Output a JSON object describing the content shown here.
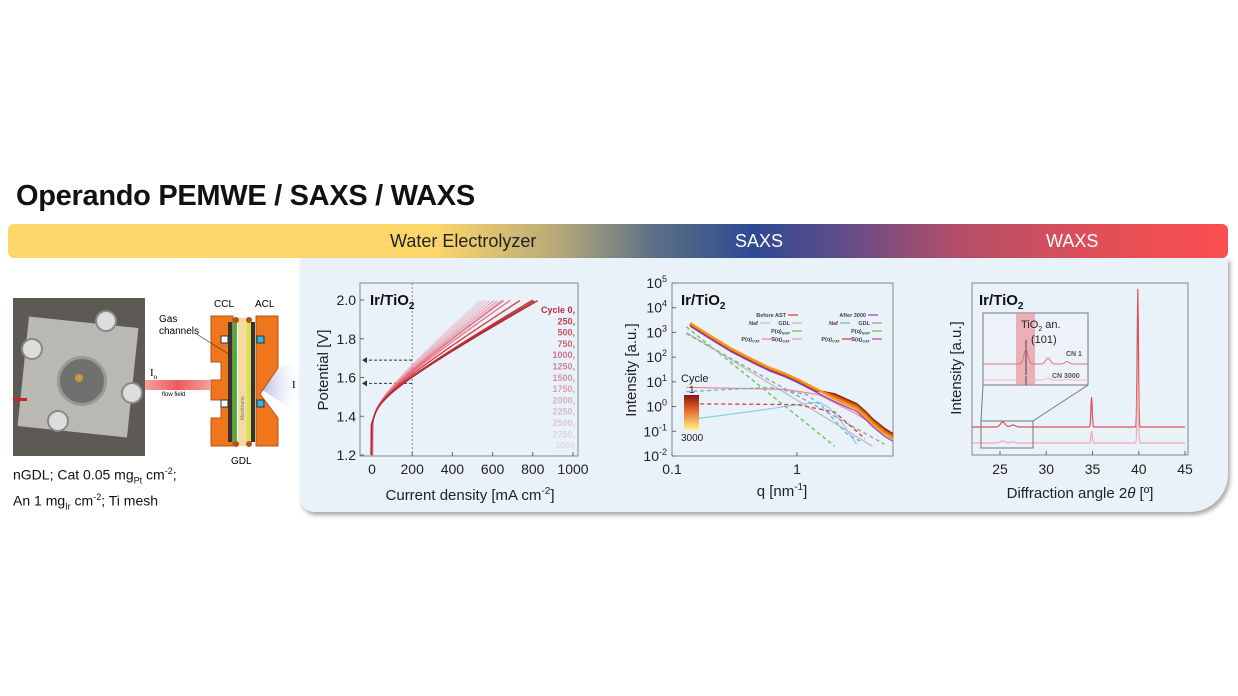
{
  "header": {
    "title": "Operando PEMWE / SAXS / WAXS"
  },
  "banner": {
    "sections": [
      "Water Electrolyzer",
      "SAXS",
      "WAXS"
    ],
    "colors": [
      "#fdd76a",
      "#2e4a93",
      "#fb4f50"
    ]
  },
  "setup": {
    "schematic_labels": {
      "ccl": "CCL",
      "acl": "ACL",
      "gas_channels_1": "Gas",
      "gas_channels_2": "channels",
      "gdl": "GDL",
      "i0": "I",
      "i0_sub": "o",
      "i": "I",
      "flow_field": "flow field",
      "membrane": "Membrane"
    },
    "caption": {
      "l1a": "nGDL; Cat 0.05 mg",
      "l1sub": "Pt",
      "l1b": " cm",
      "l1sup": "-2",
      "l1c": ";",
      "l2a": "An 1 mg",
      "l2sub": "Ir",
      "l2b": " cm",
      "l2sup": "-2",
      "l2c": "; Ti mesh"
    }
  },
  "chart_data": [
    {
      "type": "line",
      "title": "Ir/TiO",
      "title_sub": "2",
      "xlabel": "Current density [mA cm",
      "xlabel_sup": "-2",
      "xlabel_end": "]",
      "ylabel": "Potential [V]",
      "xlim": [
        -30,
        1000
      ],
      "ylim": [
        1.2,
        2.1
      ],
      "xticks": [
        "0",
        "200",
        "400",
        "600",
        "800",
        "1000"
      ],
      "yticks": [
        "1.2",
        "1.4",
        "1.6",
        "1.8",
        "2.0"
      ],
      "reference_current": 200,
      "reference_potentials": [
        1.57,
        1.69
      ],
      "legend": [
        "Cycle 0,",
        "250,",
        "500,",
        "750,",
        "1000,",
        "1250,",
        "1500,",
        "1750,",
        "2000,",
        "2250,",
        "2500,",
        "2750,",
        "3000"
      ],
      "series_current_at_2V": [
        830,
        815,
        800,
        740,
        690,
        660,
        650,
        630,
        610,
        590,
        570,
        555,
        540
      ]
    },
    {
      "type": "line",
      "scale": "log-log",
      "title": "Ir/TiO",
      "title_sub": "2",
      "xlabel": "q [nm",
      "xlabel_sup": "-1",
      "xlabel_end": "]",
      "ylabel": "Intensity [a.u.]",
      "xlim": [
        0.1,
        6
      ],
      "ylim": [
        0.01,
        100000
      ],
      "xticks": [
        "0.1",
        "1"
      ],
      "yticks": [
        [
          "10",
          "-2"
        ],
        [
          "10",
          "-1"
        ],
        [
          "10",
          "0"
        ],
        [
          "10",
          "1"
        ],
        [
          "10",
          "2"
        ],
        [
          "10",
          "3"
        ],
        [
          "10",
          "4"
        ],
        [
          "10",
          "5"
        ]
      ],
      "colorbar": {
        "label": "Cycle",
        "min": "1",
        "max": "3000"
      },
      "legend": {
        "before": "Before AST",
        "after": "After 3000",
        "naf": "Naf",
        "gdl": "GDL",
        "psup": "P(q)",
        "psup_sub": "SUP",
        "pcat": "P(q)",
        "pcat_sub": "CAT",
        "scat": "S(q)",
        "scat_sub": "CAT"
      },
      "measured": [
        [
          0.14,
          2200
        ],
        [
          0.2,
          700
        ],
        [
          0.3,
          200
        ],
        [
          0.45,
          70
        ],
        [
          0.6,
          35
        ],
        [
          0.8,
          20
        ],
        [
          1,
          12
        ],
        [
          1.4,
          5
        ],
        [
          2,
          2
        ],
        [
          2.6,
          1.1
        ],
        [
          3,
          0.8
        ],
        [
          3.5,
          0.4
        ],
        [
          4,
          0.2
        ],
        [
          5,
          0.08
        ],
        [
          5.8,
          0.05
        ]
      ],
      "fits": [
        {
          "key": "naf_before",
          "color": "#8ecfe8",
          "dash": false,
          "points": [
            [
              0.14,
              0.3
            ],
            [
              0.5,
              0.7
            ],
            [
              1,
              1.2
            ],
            [
              1.5,
              1.5
            ],
            [
              1.8,
              0.9
            ],
            [
              2.2,
              0.3
            ],
            [
              3,
              0.03
            ]
          ]
        },
        {
          "key": "psup",
          "color": "#5cc94a",
          "dash": true,
          "points": [
            [
              0.13,
              1700
            ],
            [
              2,
              0.025
            ]
          ]
        },
        {
          "key": "gdl",
          "color": "#bdbdbd",
          "dash": false,
          "points": [
            [
              0.13,
              1000
            ],
            [
              4,
              0.025
            ]
          ]
        },
        {
          "key": "gdl_after",
          "color": "#9a9a9a",
          "dash": true,
          "points": [
            [
              0.13,
              900
            ],
            [
              5,
              0.03
            ]
          ]
        },
        {
          "key": "pcat_before",
          "color": "#ef8a8a",
          "dash": false,
          "points": [
            [
              0.13,
              6
            ],
            [
              0.8,
              5
            ],
            [
              1.5,
              3
            ],
            [
              3,
              0.5
            ],
            [
              5,
              0.1
            ]
          ]
        },
        {
          "key": "naf_after",
          "color": "#62b4e0",
          "dash": true,
          "points": [
            [
              0.13,
              4
            ],
            [
              0.6,
              6
            ],
            [
              1.2,
              3
            ],
            [
              1.6,
              1
            ],
            [
              1.8,
              0.5
            ],
            [
              2.5,
              0.08
            ],
            [
              3.2,
              0.04
            ]
          ]
        },
        {
          "key": "pcat_after",
          "color": "#e33a3a",
          "dash": true,
          "points": [
            [
              0.13,
              1.3
            ],
            [
              1,
              1.2
            ],
            [
              2,
              0.6
            ],
            [
              3,
              0.1
            ],
            [
              3.5,
              0.05
            ]
          ]
        }
      ]
    },
    {
      "type": "line",
      "title": "Ir/TiO",
      "title_sub": "2",
      "xlabel": "Diffraction angle 2",
      "xlabel_theta": "θ",
      "xlabel_end": " [º]",
      "ylabel": "Intensity [a.u.]",
      "xlim": [
        22,
        45
      ],
      "xticks": [
        "25",
        "30",
        "35",
        "40",
        "45"
      ],
      "inset": {
        "label1": "TiO",
        "label1_sub": "2",
        "label1_end": " an.",
        "label2": "(101)",
        "cn1": "CN 1",
        "cn3000": "CN 3000"
      },
      "series": [
        {
          "name": "CN 1",
          "color": "#d9545a",
          "peaks": [
            [
              25.3,
              5
            ],
            [
              26.4,
              2
            ],
            [
              34.9,
              30
            ],
            [
              39.9,
              138
            ]
          ]
        },
        {
          "name": "CN 3000",
          "color": "#f2aab0",
          "peaks": [
            [
              25.3,
              2
            ],
            [
              26.4,
              1
            ],
            [
              34.9,
              12
            ],
            [
              39.9,
              60
            ]
          ]
        }
      ]
    }
  ]
}
